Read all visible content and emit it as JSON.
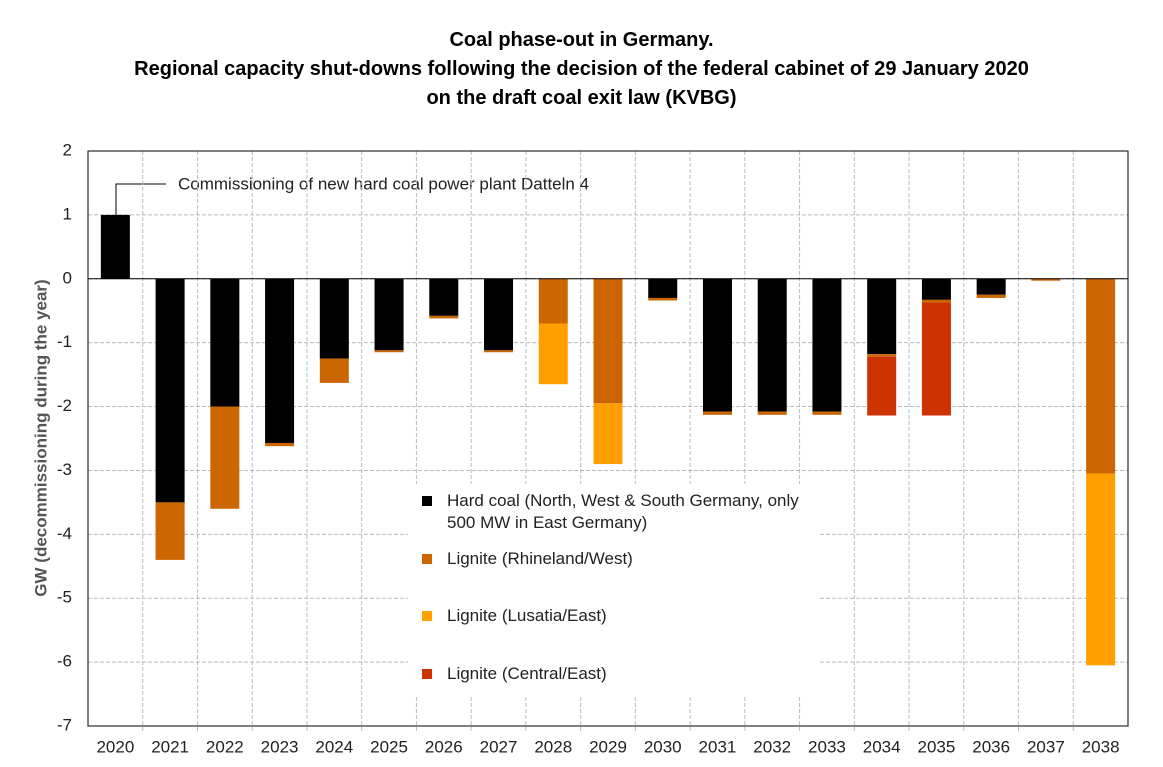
{
  "chart_data": {
    "type": "stacked_bar",
    "title": [
      "Coal phase-out in Germany.",
      "Regional capacity shut-downs following the decision of the federal cabinet of 29 January 2020",
      "on the draft coal exit law (KVBG)"
    ],
    "y_label": "GW (decommissioning during the year)",
    "annotation": "Commissioning  of new hard coal power plant Datteln 4",
    "categories": [
      "2020",
      "2021",
      "2022",
      "2023",
      "2024",
      "2025",
      "2026",
      "2027",
      "2028",
      "2029",
      "2030",
      "2031",
      "2032",
      "2033",
      "2034",
      "2035",
      "2036",
      "2037",
      "2038"
    ],
    "series": [
      {
        "name": "Hard coal (North, West & South Germany, only 500 MW in East Germany)",
        "color": "#000000",
        "values": [
          1.0,
          -3.5,
          -2.0,
          -2.57,
          -1.25,
          -1.12,
          -0.58,
          -1.12,
          0,
          0,
          -0.3,
          -2.08,
          -2.08,
          -2.08,
          -1.18,
          -0.33,
          -0.25,
          0,
          0
        ]
      },
      {
        "name": "Lignite (Rhineland/West)",
        "color": "#cc6600",
        "values": [
          0,
          -0.9,
          -1.6,
          -0.05,
          -0.38,
          -0.03,
          -0.04,
          -0.03,
          -0.7,
          -1.95,
          -0.04,
          -0.05,
          -0.05,
          -0.05,
          -0.04,
          -0.04,
          -0.05,
          -0.03,
          -3.05
        ]
      },
      {
        "name": "Lignite (Lusatia/East)",
        "color": "#ffa000",
        "values": [
          0,
          0,
          0,
          0,
          0,
          0.0,
          0,
          0,
          -0.95,
          -0.95,
          0,
          0,
          0,
          0,
          0,
          0,
          0,
          0,
          -3.0
        ]
      },
      {
        "name": "Lignite (Central/East)",
        "color": "#cc3300",
        "values": [
          0,
          0,
          0,
          0,
          0,
          0,
          0,
          0,
          0,
          0,
          0,
          0,
          0,
          0,
          -0.92,
          -1.77,
          0,
          0,
          0
        ]
      }
    ],
    "ylim": [
      -7,
      2
    ],
    "yticks": [
      -7,
      -6,
      -5,
      -4,
      -3,
      -2,
      -1,
      0,
      1,
      2
    ],
    "grid": true,
    "legend": "lower center"
  }
}
